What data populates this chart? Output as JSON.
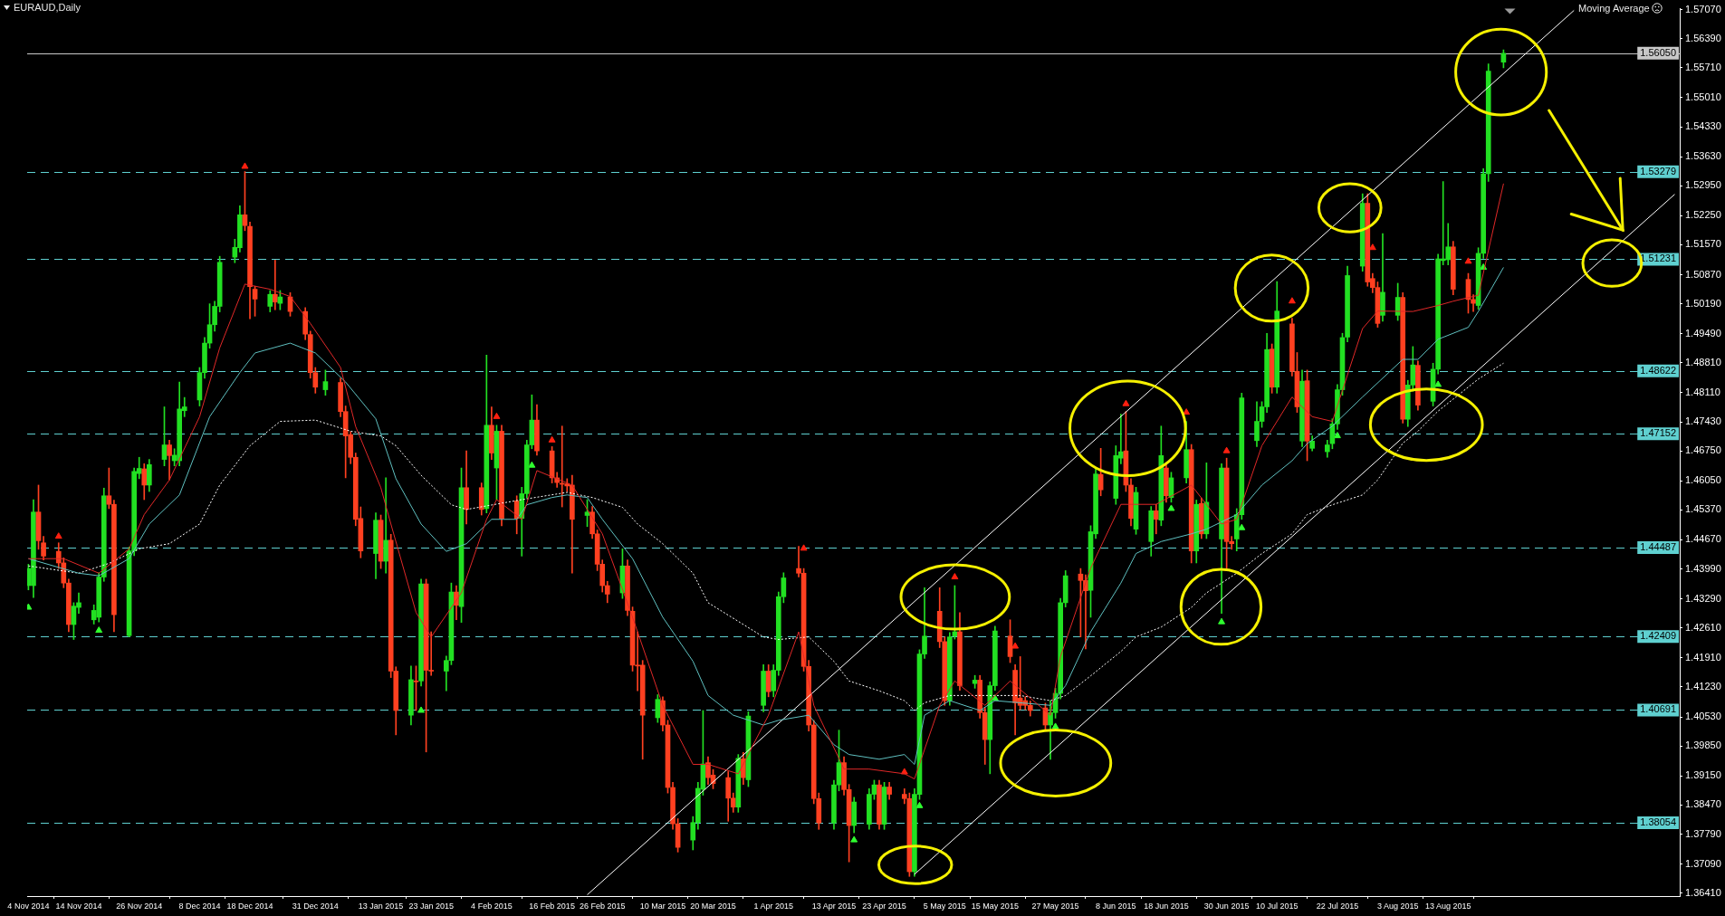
{
  "chart_data": {
    "type": "candlestick",
    "title": "EURAUD,Daily",
    "annotations": [
      "Moving Average"
    ],
    "x": [
      "2014-11-04",
      "2014-11-05",
      "2014-11-06",
      "2014-11-07",
      "2014-11-10",
      "2014-11-11",
      "2014-11-12",
      "2014-11-13",
      "2014-11-14",
      "2014-11-17",
      "2014-11-18",
      "2014-11-19",
      "2014-11-20",
      "2014-11-21",
      "2014-11-24",
      "2014-11-25",
      "2014-11-26",
      "2014-11-27",
      "2014-11-28",
      "2014-12-01",
      "2014-12-02",
      "2014-12-03",
      "2014-12-04",
      "2014-12-05",
      "2014-12-08",
      "2014-12-09",
      "2014-12-10",
      "2014-12-11",
      "2014-12-12",
      "2014-12-15",
      "2014-12-16",
      "2014-12-17",
      "2014-12-18",
      "2014-12-19",
      "2014-12-22",
      "2014-12-23",
      "2014-12-24",
      "2014-12-26",
      "2014-12-29",
      "2014-12-30",
      "2014-12-31",
      "2015-01-02",
      "2015-01-05",
      "2015-01-06",
      "2015-01-07",
      "2015-01-08",
      "2015-01-09",
      "2015-01-12",
      "2015-01-13",
      "2015-01-14",
      "2015-01-15",
      "2015-01-16",
      "2015-01-19",
      "2015-01-20",
      "2015-01-21",
      "2015-01-22",
      "2015-01-23",
      "2015-01-26",
      "2015-01-27",
      "2015-01-28",
      "2015-01-29",
      "2015-01-30",
      "2015-02-02",
      "2015-02-03",
      "2015-02-04",
      "2015-02-05",
      "2015-02-06",
      "2015-02-09",
      "2015-02-10",
      "2015-02-11",
      "2015-02-12",
      "2015-02-13",
      "2015-02-16",
      "2015-02-17",
      "2015-02-18",
      "2015-02-19",
      "2015-02-20",
      "2015-02-23",
      "2015-02-24",
      "2015-02-25",
      "2015-02-26",
      "2015-02-27",
      "2015-03-02",
      "2015-03-03",
      "2015-03-04",
      "2015-03-05",
      "2015-03-06",
      "2015-03-09",
      "2015-03-10",
      "2015-03-11",
      "2015-03-12",
      "2015-03-13",
      "2015-03-16",
      "2015-03-17",
      "2015-03-18",
      "2015-03-19",
      "2015-03-20",
      "2015-03-23",
      "2015-03-24",
      "2015-03-25",
      "2015-03-26",
      "2015-03-27",
      "2015-03-30",
      "2015-03-31",
      "2015-04-01",
      "2015-04-02",
      "2015-04-03",
      "2015-04-06",
      "2015-04-07",
      "2015-04-08",
      "2015-04-09",
      "2015-04-10",
      "2015-04-13",
      "2015-04-14",
      "2015-04-15",
      "2015-04-16",
      "2015-04-17",
      "2015-04-20",
      "2015-04-21",
      "2015-04-22",
      "2015-04-23",
      "2015-04-24",
      "2015-04-27",
      "2015-04-28",
      "2015-04-29",
      "2015-04-30",
      "2015-05-01",
      "2015-05-04",
      "2015-05-05",
      "2015-05-06",
      "2015-05-07",
      "2015-05-08",
      "2015-05-11",
      "2015-05-12",
      "2015-05-13",
      "2015-05-14",
      "2015-05-15",
      "2015-05-18",
      "2015-05-19",
      "2015-05-20",
      "2015-05-21",
      "2015-05-22",
      "2015-05-25",
      "2015-05-26",
      "2015-05-27",
      "2015-05-28",
      "2015-05-29",
      "2015-06-01",
      "2015-06-02",
      "2015-06-03",
      "2015-06-04",
      "2015-06-05",
      "2015-06-08",
      "2015-06-09",
      "2015-06-10",
      "2015-06-11",
      "2015-06-12",
      "2015-06-15",
      "2015-06-16",
      "2015-06-17",
      "2015-06-18",
      "2015-06-19",
      "2015-06-22",
      "2015-06-23",
      "2015-06-24",
      "2015-06-25",
      "2015-06-26",
      "2015-06-29",
      "2015-06-30",
      "2015-07-01",
      "2015-07-02",
      "2015-07-03",
      "2015-07-06",
      "2015-07-07",
      "2015-07-08",
      "2015-07-09",
      "2015-07-10",
      "2015-07-13",
      "2015-07-14",
      "2015-07-15",
      "2015-07-16",
      "2015-07-17",
      "2015-07-20",
      "2015-07-21",
      "2015-07-22",
      "2015-07-23",
      "2015-07-24",
      "2015-07-27",
      "2015-07-28",
      "2015-07-29",
      "2015-07-30",
      "2015-07-31",
      "2015-08-03",
      "2015-08-04",
      "2015-08-05",
      "2015-08-06",
      "2015-08-07",
      "2015-08-10",
      "2015-08-11",
      "2015-08-12",
      "2015-08-13",
      "2015-08-14",
      "2015-08-17",
      "2015-08-18",
      "2015-08-19",
      "2015-08-20",
      "2015-08-21",
      "2015-08-24"
    ],
    "ohlc": [
      [
        1.436,
        1.441,
        1.435,
        1.44
      ],
      [
        1.436,
        1.4561,
        1.4332,
        1.4532
      ],
      [
        1.4532,
        1.4595,
        1.4445,
        1.4465
      ],
      [
        1.446,
        1.4475,
        1.442,
        1.4429
      ],
      [
        1.444,
        1.446,
        1.44,
        1.4413
      ],
      [
        1.4413,
        1.4425,
        1.4355,
        1.4366
      ],
      [
        1.4366,
        1.4375,
        1.4252,
        1.4269
      ],
      [
        1.4269,
        1.432,
        1.4234,
        1.4312
      ],
      [
        1.4309,
        1.4343,
        1.4295,
        1.432
      ],
      [
        1.428,
        1.4315,
        1.427,
        1.4302
      ],
      [
        1.4286,
        1.439,
        1.4275,
        1.438
      ],
      [
        1.438,
        1.4588,
        1.437,
        1.457
      ],
      [
        1.457,
        1.4635,
        1.454,
        1.455
      ],
      [
        1.455,
        1.456,
        1.4252,
        1.4292
      ],
      [
        1.4243,
        1.445,
        1.424,
        1.4441
      ],
      [
        1.4441,
        1.4635,
        1.443,
        1.4627
      ],
      [
        1.4622,
        1.466,
        1.461,
        1.4634
      ],
      [
        1.4633,
        1.4645,
        1.4561,
        1.4595
      ],
      [
        1.4595,
        1.4655,
        1.458,
        1.4643
      ],
      [
        1.4655,
        1.4778,
        1.464,
        1.4689
      ],
      [
        1.4689,
        1.47,
        1.4607,
        1.4664
      ],
      [
        1.4652,
        1.468,
        1.464,
        1.4665
      ],
      [
        1.4652,
        1.4836,
        1.464,
        1.4773
      ],
      [
        1.4769,
        1.48,
        1.4755,
        1.4778
      ],
      [
        1.4794,
        1.487,
        1.478,
        1.4858
      ],
      [
        1.4858,
        1.494,
        1.4845,
        1.4927
      ],
      [
        1.4927,
        1.5019,
        1.4915,
        1.497
      ],
      [
        1.497,
        1.5025,
        1.4955,
        1.5013
      ],
      [
        1.5013,
        1.513,
        1.5,
        1.5116
      ],
      [
        1.5128,
        1.517,
        1.5115,
        1.5151
      ],
      [
        1.515,
        1.5248,
        1.514,
        1.5227
      ],
      [
        1.5227,
        1.5328,
        1.519,
        1.5202
      ],
      [
        1.52,
        1.521,
        1.4984,
        1.5059
      ],
      [
        1.5053,
        1.506,
        1.499,
        1.503
      ],
      [
        1.5013,
        1.505,
        1.5,
        1.5041
      ],
      [
        1.5041,
        1.5121,
        1.5005,
        1.5023
      ],
      [
        1.502,
        1.505,
        1.5005,
        1.5035
      ],
      [
        1.5035,
        1.5045,
        1.499,
        1.5001
      ],
      [
        1.5001,
        1.501,
        1.4935,
        1.4948
      ],
      [
        1.4947,
        1.4955,
        1.4845,
        1.4858
      ],
      [
        1.4858,
        1.487,
        1.481,
        1.4824
      ],
      [
        1.4818,
        1.4864,
        1.4805,
        1.4837
      ],
      [
        1.4835,
        1.4845,
        1.4755,
        1.4767
      ],
      [
        1.4767,
        1.478,
        1.4612,
        1.471
      ],
      [
        1.4713,
        1.472,
        1.4645,
        1.466
      ],
      [
        1.466,
        1.467,
        1.45,
        1.4515
      ],
      [
        1.4517,
        1.4544,
        1.4425,
        1.4441
      ],
      [
        1.4435,
        1.453,
        1.4376,
        1.4513
      ],
      [
        1.4513,
        1.4525,
        1.44,
        1.4417
      ],
      [
        1.4417,
        1.4612,
        1.4389,
        1.4466
      ],
      [
        1.4466,
        1.448,
        1.4145,
        1.416
      ],
      [
        1.416,
        1.417,
        1.4011,
        1.4068
      ],
      [
        1.4057,
        1.4172,
        1.4034,
        1.414
      ],
      [
        1.4137,
        1.4172,
        1.4068,
        1.4135
      ],
      [
        1.4137,
        1.4375,
        1.4125,
        1.4364
      ],
      [
        1.4364,
        1.4375,
        1.3971,
        1.4162
      ],
      [
        1.4162,
        1.4252,
        1.415,
        1.416
      ],
      [
        1.416,
        1.4195,
        1.4114,
        1.4185
      ],
      [
        1.4185,
        1.4366,
        1.4175,
        1.4345
      ],
      [
        1.4345,
        1.436,
        1.428,
        1.4314
      ],
      [
        1.4311,
        1.4635,
        1.4274,
        1.4589
      ],
      [
        1.4589,
        1.4675,
        1.4504,
        1.4538
      ],
      [
        1.4589,
        1.46,
        1.4525,
        1.4538
      ],
      [
        1.454,
        1.4899,
        1.453,
        1.4735
      ],
      [
        1.4735,
        1.4778,
        1.4655,
        1.467
      ],
      [
        1.4635,
        1.4735,
        1.4561,
        1.4721
      ],
      [
        1.4721,
        1.4735,
        1.45,
        1.4517
      ],
      [
        1.4558,
        1.457,
        1.4481,
        1.4517
      ],
      [
        1.4517,
        1.459,
        1.4429,
        1.4575
      ],
      [
        1.4575,
        1.47,
        1.4565,
        1.4689
      ],
      [
        1.4689,
        1.4806,
        1.468,
        1.4747
      ],
      [
        1.4747,
        1.4783,
        1.4665,
        1.4675
      ],
      [
        1.4675,
        1.4685,
        1.46,
        1.4612
      ],
      [
        1.4612,
        1.4625,
        1.459,
        1.4601
      ],
      [
        1.4598,
        1.4733,
        1.4544,
        1.4597
      ],
      [
        1.4598,
        1.461,
        1.458,
        1.4593
      ],
      [
        1.4595,
        1.4618,
        1.4389,
        1.4515
      ],
      [
        1.4524,
        1.4561,
        1.4498,
        1.4532
      ],
      [
        1.4532,
        1.4545,
        1.447,
        1.4481
      ],
      [
        1.4481,
        1.449,
        1.4395,
        1.441
      ],
      [
        1.441,
        1.442,
        1.4345,
        1.436
      ],
      [
        1.436,
        1.437,
        1.432,
        1.434
      ],
      [
        1.4343,
        1.4446,
        1.433,
        1.4406
      ],
      [
        1.4406,
        1.442,
        1.429,
        1.4302
      ],
      [
        1.43,
        1.431,
        1.416,
        1.4174
      ],
      [
        1.4174,
        1.4252,
        1.4114,
        1.4172
      ],
      [
        1.4174,
        1.4185,
        1.3954,
        1.4057
      ],
      [
        1.4051,
        1.4105,
        1.404,
        1.4094
      ],
      [
        1.4091,
        1.41,
        1.402,
        1.4034
      ],
      [
        1.4034,
        1.4045,
        1.3875,
        1.3888
      ],
      [
        1.3888,
        1.39,
        1.379,
        1.3803
      ],
      [
        1.3803,
        1.3815,
        1.3737,
        1.3748
      ],
      [
        1.3765,
        1.382,
        1.3742,
        1.3806
      ],
      [
        1.3806,
        1.39,
        1.379,
        1.3886
      ],
      [
        1.3884,
        1.4068,
        1.387,
        1.3943
      ],
      [
        1.3946,
        1.396,
        1.3895,
        1.3911
      ],
      [
        1.3917,
        1.393,
        1.3885,
        1.3897
      ],
      [
        1.3911,
        1.3925,
        1.3809,
        1.3863
      ],
      [
        1.3863,
        1.3875,
        1.383,
        1.3842
      ],
      [
        1.3842,
        1.3965,
        1.383,
        1.3956
      ],
      [
        1.3955,
        1.397,
        1.3895,
        1.3911
      ],
      [
        1.3906,
        1.4065,
        1.389,
        1.4055
      ],
      [
        1.408,
        1.4175,
        1.4065,
        1.416
      ],
      [
        1.416,
        1.4175,
        1.41,
        1.4112
      ],
      [
        1.4114,
        1.4175,
        1.41,
        1.4162
      ],
      [
        1.4162,
        1.4345,
        1.415,
        1.4334
      ],
      [
        1.4334,
        1.439,
        1.432,
        1.4378
      ],
      [
        1.44,
        1.4452,
        1.438,
        1.4389
      ],
      [
        1.4389,
        1.44,
        1.416,
        1.4171
      ],
      [
        1.4171,
        1.4185,
        1.402,
        1.4034
      ],
      [
        1.4034,
        1.4045,
        1.385,
        1.3862
      ],
      [
        1.3862,
        1.3875,
        1.379,
        1.3805
      ],
      [
        1.3805,
        1.3905,
        1.379,
        1.3894
      ],
      [
        1.3894,
        1.4022,
        1.388,
        1.3946
      ],
      [
        1.3946,
        1.396,
        1.387,
        1.3883
      ],
      [
        1.3883,
        1.3895,
        1.3714,
        1.3799
      ],
      [
        1.3799,
        1.3865,
        1.3782,
        1.3854
      ],
      [
        1.3802,
        1.3885,
        1.379,
        1.3872
      ],
      [
        1.3872,
        1.3905,
        1.386,
        1.3894
      ],
      [
        1.3894,
        1.3905,
        1.379,
        1.3802
      ],
      [
        1.3802,
        1.39,
        1.379,
        1.3889
      ],
      [
        1.3889,
        1.39,
        1.386,
        1.3872
      ],
      [
        1.3872,
        1.3885,
        1.385,
        1.3862
      ],
      [
        1.3862,
        1.3875,
        1.368,
        1.3691
      ],
      [
        1.3691,
        1.3885,
        1.368,
        1.3872
      ],
      [
        1.3872,
        1.421,
        1.386,
        1.42
      ],
      [
        1.42,
        1.4355,
        1.419,
        1.4242
      ],
      [
        1.43,
        1.4355,
        1.4215,
        1.4229
      ],
      [
        1.4229,
        1.424,
        1.408,
        1.4091
      ],
      [
        1.4091,
        1.425,
        1.408,
        1.424
      ],
      [
        1.4242,
        1.436,
        1.4235,
        1.4252
      ],
      [
        1.4252,
        1.4297,
        1.4115,
        1.4126
      ],
      [
        1.4131,
        1.415,
        1.412,
        1.4139
      ],
      [
        1.4139,
        1.415,
        1.405,
        1.4063
      ],
      [
        1.4063,
        1.4075,
        1.3942,
        1.4
      ],
      [
        1.4,
        1.4135,
        1.392,
        1.4126
      ],
      [
        1.4126,
        1.4265,
        1.4115,
        1.4254
      ],
      [
        1.4242,
        1.428,
        1.418,
        1.4194
      ],
      [
        1.4162,
        1.4175,
        1.4011,
        1.4086
      ],
      [
        1.4097,
        1.4194,
        1.407,
        1.408
      ],
      [
        1.4091,
        1.41,
        1.407,
        1.408
      ],
      [
        1.408,
        1.409,
        1.4055,
        1.4068
      ],
      [
        1.4074,
        1.4085,
        1.402,
        1.4034
      ],
      [
        1.4034,
        1.4091,
        1.3954,
        1.4063
      ],
      [
        1.4063,
        1.412,
        1.405,
        1.4108
      ],
      [
        1.4108,
        1.433,
        1.4095,
        1.432
      ],
      [
        1.432,
        1.4395,
        1.431,
        1.4383
      ],
      [
        1.4387,
        1.44,
        1.424,
        1.4372
      ],
      [
        1.4372,
        1.4385,
        1.4212,
        1.4348
      ],
      [
        1.4349,
        1.45,
        1.4286,
        1.4486
      ],
      [
        1.4481,
        1.4635,
        1.447,
        1.4621
      ],
      [
        1.462,
        1.4681,
        1.457,
        1.4584
      ],
      [
        1.4564,
        1.4687,
        1.455,
        1.4664
      ],
      [
        1.4658,
        1.4761,
        1.4645,
        1.4673
      ],
      [
        1.4675,
        1.4767,
        1.458,
        1.4595
      ],
      [
        1.4595,
        1.461,
        1.45,
        1.4517
      ],
      [
        1.4492,
        1.459,
        1.448,
        1.4578
      ],
      [
        1.4463,
        1.4545,
        1.4429,
        1.4535
      ],
      [
        1.4535,
        1.455,
        1.4481,
        1.4515
      ],
      [
        1.4513,
        1.4733,
        1.45,
        1.4664
      ],
      [
        1.4635,
        1.4645,
        1.4555,
        1.457
      ],
      [
        1.4566,
        1.4625,
        1.4555,
        1.4612
      ],
      [
        1.4612,
        1.4744,
        1.46,
        1.4678
      ],
      [
        1.4678,
        1.469,
        1.4413,
        1.4441
      ],
      [
        1.4441,
        1.456,
        1.4413,
        1.455
      ],
      [
        1.4552,
        1.4565,
        1.447,
        1.4481
      ],
      [
        1.4481,
        1.4647,
        1.447,
        1.4555
      ],
      [
        1.4469,
        1.4645,
        1.4295,
        1.4635
      ],
      [
        1.4635,
        1.4658,
        1.44,
        1.4463
      ],
      [
        1.4463,
        1.4475,
        1.4445,
        1.4458
      ],
      [
        1.4469,
        1.454,
        1.4441,
        1.4526
      ],
      [
        1.4526,
        1.481,
        1.4515,
        1.4799
      ],
      [
        1.4699,
        1.479,
        1.4685,
        1.4744
      ],
      [
        1.4744,
        1.479,
        1.473,
        1.4778
      ],
      [
        1.4778,
        1.495,
        1.4765,
        1.4912
      ],
      [
        1.4913,
        1.4925,
        1.481,
        1.4824
      ],
      [
        1.4824,
        1.5071,
        1.481,
        1.5002
      ],
      [
        1.4972,
        1.4985,
        1.485,
        1.4861
      ],
      [
        1.4861,
        1.4905,
        1.4765,
        1.4778
      ],
      [
        1.4698,
        1.4864,
        1.4685,
        1.4838
      ],
      [
        1.4839,
        1.4864,
        1.4652,
        1.4698
      ],
      [
        1.4681,
        1.471,
        1.4675,
        1.4698
      ],
      [
        1.4673,
        1.47,
        1.466,
        1.4689
      ],
      [
        1.4692,
        1.475,
        1.468,
        1.4738
      ],
      [
        1.4738,
        1.483,
        1.4725,
        1.4818
      ],
      [
        1.4818,
        1.495,
        1.4805,
        1.494
      ],
      [
        1.4941,
        1.5107,
        1.493,
        1.5085
      ],
      [
        1.5107,
        1.5276,
        1.5095,
        1.5254
      ],
      [
        1.5254,
        1.5276,
        1.506,
        1.507
      ],
      [
        1.5078,
        1.509,
        1.5045,
        1.5057
      ],
      [
        1.5057,
        1.507,
        1.4964,
        1.4973
      ],
      [
        1.4992,
        1.5183,
        1.4978,
        1.5046
      ],
      [
        1.4992,
        1.5067,
        1.498,
        1.5034
      ],
      [
        1.5034,
        1.5045,
        1.474,
        1.4749
      ],
      [
        1.4749,
        1.484,
        1.4732,
        1.4829
      ],
      [
        1.4829,
        1.4919,
        1.4815,
        1.4876
      ],
      [
        1.4875,
        1.4885,
        1.477,
        1.4782
      ],
      [
        1.4791,
        1.488,
        1.478,
        1.4866
      ],
      [
        1.4866,
        1.5135,
        1.4855,
        1.5124
      ],
      [
        1.512,
        1.5305,
        1.511,
        1.5124
      ],
      [
        1.5122,
        1.5207,
        1.511,
        1.5152
      ],
      [
        1.5152,
        1.5165,
        1.504,
        1.5053
      ],
      [
        1.5076,
        1.509,
        1.4997,
        1.5029
      ],
      [
        1.5029,
        1.504,
        1.5001,
        1.502
      ],
      [
        1.5015,
        1.515,
        1.5006,
        1.5137
      ],
      [
        1.5137,
        1.5335,
        1.5125,
        1.5323
      ],
      [
        1.5323,
        1.558,
        1.5305,
        1.5563
      ],
      [
        1.5584,
        1.5613,
        1.5571,
        1.5605
      ]
    ],
    "colors": [
      "#22e022",
      "#22e022",
      "#ff4020",
      "#ff4020",
      "#ff4020",
      "#ff4020",
      "#ff4020",
      "#22e022",
      "#22e022",
      "#22e022",
      "#22e022",
      "#22e022",
      "#ff4020",
      "#ff4020",
      "#22e022",
      "#22e022",
      "#22e022",
      "#ff4020",
      "#22e022",
      "#22e022",
      "#ff4020",
      "#22e022",
      "#22e022",
      "#22e022",
      "#22e022",
      "#22e022",
      "#22e022",
      "#22e022",
      "#22e022",
      "#22e022",
      "#22e022",
      "#ff4020",
      "#ff4020",
      "#ff4020",
      "#22e022",
      "#ff4020",
      "#22e022",
      "#ff4020",
      "#ff4020",
      "#ff4020",
      "#ff4020",
      "#22e022",
      "#ff4020",
      "#ff4020",
      "#ff4020",
      "#ff4020",
      "#ff4020",
      "#22e022",
      "#ff4020",
      "#22e022",
      "#ff4020",
      "#ff4020",
      "#22e022",
      "#ff4020",
      "#22e022",
      "#ff4020",
      "#ff4020",
      "#22e022",
      "#22e022",
      "#ff4020",
      "#22e022",
      "#ff4020",
      "#ff4020",
      "#22e022",
      "#ff4020",
      "#22e022",
      "#ff4020",
      "#ff4020",
      "#22e022",
      "#22e022",
      "#22e022",
      "#ff4020",
      "#ff4020",
      "#ff4020",
      "#ff4020",
      "#ff4020",
      "#ff4020",
      "#22e022",
      "#ff4020",
      "#ff4020",
      "#ff4020",
      "#ff4020",
      "#22e022",
      "#ff4020",
      "#ff4020",
      "#ff4020",
      "#ff4020",
      "#22e022",
      "#ff4020",
      "#ff4020",
      "#ff4020",
      "#ff4020",
      "#22e022",
      "#22e022",
      "#22e022",
      "#ff4020",
      "#ff4020",
      "#ff4020",
      "#ff4020",
      "#22e022",
      "#ff4020",
      "#22e022",
      "#22e022",
      "#ff4020",
      "#22e022",
      "#22e022",
      "#22e022",
      "#ff4020",
      "#ff4020",
      "#ff4020",
      "#ff4020",
      "#ff4020",
      "#22e022",
      "#22e022",
      "#ff4020",
      "#ff4020",
      "#22e022",
      "#22e022",
      "#22e022",
      "#ff4020",
      "#22e022",
      "#ff4020",
      "#ff4020",
      "#ff4020",
      "#22e022",
      "#22e022",
      "#22e022",
      "#ff4020",
      "#ff4020",
      "#22e022",
      "#22e022",
      "#ff4020",
      "#22e022",
      "#ff4020",
      "#ff4020",
      "#22e022",
      "#22e022",
      "#ff4020",
      "#ff4020",
      "#ff4020",
      "#ff4020",
      "#ff4020",
      "#ff4020",
      "#22e022",
      "#22e022",
      "#22e022",
      "#22e022",
      "#ff4020",
      "#ff4020",
      "#22e022",
      "#22e022",
      "#ff4020",
      "#22e022",
      "#22e022",
      "#ff4020",
      "#ff4020",
      "#22e022",
      "#22e022",
      "#ff4020",
      "#22e022",
      "#ff4020",
      "#22e022",
      "#22e022",
      "#ff4020",
      "#22e022",
      "#ff4020",
      "#22e022",
      "#22e022",
      "#ff4020",
      "#ff4020",
      "#22e022",
      "#22e022",
      "#22e022",
      "#22e022",
      "#22e022",
      "#ff4020",
      "#22e022",
      "#ff4020",
      "#ff4020",
      "#22e022",
      "#ff4020",
      "#22e022",
      "#22e022",
      "#22e022",
      "#22e022",
      "#22e022",
      "#22e022",
      "#22e022",
      "#ff4020",
      "#ff4020",
      "#ff4020",
      "#22e022",
      "#22e022",
      "#ff4020",
      "#22e022",
      "#22e022",
      "#ff4020",
      "#22e022",
      "#22e022",
      "#22e022",
      "#22e022",
      "#ff4020",
      "#ff4020",
      "#ff4020",
      "#22e022",
      "#22e022",
      "#22e022",
      "#22e022"
    ],
    "series": [
      {
        "type": "line",
        "color": "#e02828",
        "x": [
          "2014-11-04",
          "2014-11-11",
          "2014-11-18",
          "2014-11-24",
          "2014-11-27",
          "2014-12-02",
          "2014-12-08",
          "2014-12-12",
          "2014-12-17",
          "2014-12-22",
          "2014-12-26",
          "2014-12-30",
          "2015-01-05",
          "2015-01-08",
          "2015-01-13",
          "2015-01-15",
          "2015-01-20",
          "2015-01-23",
          "2015-01-29",
          "2015-02-03",
          "2015-02-05",
          "2015-02-10",
          "2015-02-13",
          "2015-02-20",
          "2015-02-26",
          "2015-03-04",
          "2015-03-10",
          "2015-03-16",
          "2015-03-19",
          "2015-03-25",
          "2015-03-31",
          "2015-04-06",
          "2015-04-09",
          "2015-04-15",
          "2015-04-20",
          "2015-04-27",
          "2015-04-29",
          "2015-05-04",
          "2015-05-07",
          "2015-05-13",
          "2015-05-18",
          "2015-05-26",
          "2015-05-28",
          "2015-06-03",
          "2015-06-09",
          "2015-06-16",
          "2015-06-23",
          "2015-06-29",
          "2015-07-02",
          "2015-07-07",
          "2015-07-13",
          "2015-07-17",
          "2015-07-21",
          "2015-07-27",
          "2015-07-30",
          "2015-08-06",
          "2015-08-11",
          "2015-08-14",
          "2015-08-19",
          "2015-08-24"
        ],
        "values": [
          1.4423,
          1.4423,
          1.4389,
          1.4446,
          1.4526,
          1.4607,
          1.4755,
          1.4916,
          1.5065,
          1.5053,
          1.5036,
          1.4973,
          1.487,
          1.4732,
          1.4589,
          1.4504,
          1.4297,
          1.424,
          1.4343,
          1.4515,
          1.4561,
          1.4515,
          1.4629,
          1.4595,
          1.4481,
          1.4286,
          1.408,
          1.3942,
          1.3942,
          1.392,
          1.4057,
          1.4252,
          1.408,
          1.3931,
          1.3931,
          1.392,
          1.3908,
          1.408,
          1.4137,
          1.408,
          1.4137,
          1.4057,
          1.4194,
          1.4401,
          1.455,
          1.455,
          1.4595,
          1.4504,
          1.4515,
          1.4687,
          1.4801,
          1.4755,
          1.4744,
          1.4961,
          1.5002,
          1.5001,
          1.5015,
          1.5025,
          1.5039,
          1.53
        ]
      },
      {
        "type": "line",
        "color": "#5fc0c0",
        "x": [
          "2014-11-04",
          "2014-11-14",
          "2014-11-18",
          "2014-11-24",
          "2014-11-28",
          "2014-12-04",
          "2014-12-10",
          "2014-12-16",
          "2014-12-19",
          "2014-12-26",
          "2014-12-31",
          "2015-01-06",
          "2015-01-12",
          "2015-01-16",
          "2015-01-21",
          "2015-01-26",
          "2015-01-30",
          "2015-02-04",
          "2015-02-09",
          "2015-02-11",
          "2015-02-16",
          "2015-02-19",
          "2015-02-23",
          "2015-02-26",
          "2015-03-04",
          "2015-03-10",
          "2015-03-16",
          "2015-03-19",
          "2015-03-24",
          "2015-03-30",
          "2015-04-02",
          "2015-04-08",
          "2015-04-13",
          "2015-04-16",
          "2015-04-22",
          "2015-04-27",
          "2015-04-29",
          "2015-05-01",
          "2015-05-06",
          "2015-05-12",
          "2015-05-15",
          "2015-05-26",
          "2015-05-29",
          "2015-06-03",
          "2015-06-09",
          "2015-06-12",
          "2015-06-17",
          "2015-06-23",
          "2015-06-26",
          "2015-07-02",
          "2015-07-07",
          "2015-07-13",
          "2015-07-16",
          "2015-07-21",
          "2015-07-27",
          "2015-08-04",
          "2015-08-07",
          "2015-08-11",
          "2015-08-17",
          "2015-08-19",
          "2015-08-24"
        ],
        "values": [
          1.4423,
          1.4389,
          1.4383,
          1.4423,
          1.4504,
          1.4572,
          1.4755,
          1.4858,
          1.4904,
          1.4927,
          1.4904,
          1.4836,
          1.475,
          1.461,
          1.4504,
          1.444,
          1.4458,
          1.4515,
          1.4515,
          1.4549,
          1.4566,
          1.4572,
          1.4566,
          1.4515,
          1.4423,
          1.4286,
          1.4183,
          1.4103,
          1.4057,
          1.4034,
          1.4045,
          1.4057,
          1.3988,
          1.3965,
          1.3954,
          1.3965,
          1.3942,
          1.4057,
          1.4091,
          1.4068,
          1.4091,
          1.408,
          1.4126,
          1.4252,
          1.4366,
          1.4435,
          1.4463,
          1.4481,
          1.4492,
          1.4526,
          1.4595,
          1.4652,
          1.4692,
          1.4733,
          1.4801,
          1.4889,
          1.4889,
          1.4936,
          1.4964,
          1.5001,
          1.5104
        ]
      },
      {
        "type": "line",
        "color": "#ffffff",
        "line_style": "dotted",
        "x": [
          "2014-11-04",
          "2014-11-14",
          "2014-11-20",
          "2014-11-26",
          "2014-12-02",
          "2014-12-08",
          "2014-12-12",
          "2014-12-18",
          "2014-12-24",
          "2014-12-31",
          "2015-01-07",
          "2015-01-13",
          "2015-01-16",
          "2015-01-21",
          "2015-01-27",
          "2015-01-30",
          "2015-02-10",
          "2015-02-19",
          "2015-02-24",
          "2015-03-02",
          "2015-03-05",
          "2015-03-10",
          "2015-03-16",
          "2015-03-19",
          "2015-03-30",
          "2015-04-02",
          "2015-04-08",
          "2015-04-13",
          "2015-04-16",
          "2015-04-22",
          "2015-04-27",
          "2015-04-29",
          "2015-05-01",
          "2015-05-06",
          "2015-05-12",
          "2015-05-15",
          "2015-05-20",
          "2015-05-26",
          "2015-05-29",
          "2015-06-03",
          "2015-06-09",
          "2015-06-12",
          "2015-06-17",
          "2015-06-23",
          "2015-06-26",
          "2015-07-02",
          "2015-07-07",
          "2015-07-13",
          "2015-07-16",
          "2015-07-21",
          "2015-07-27",
          "2015-07-30",
          "2015-08-04",
          "2015-08-07",
          "2015-08-11",
          "2015-08-14",
          "2015-08-19",
          "2015-08-24"
        ],
        "values": [
          1.4406,
          1.4389,
          1.4412,
          1.4446,
          1.4458,
          1.4504,
          1.4595,
          1.4687,
          1.4744,
          1.4747,
          1.4721,
          1.471,
          1.4687,
          1.4618,
          1.4549,
          1.4538,
          1.4561,
          1.4578,
          1.4566,
          1.4543,
          1.4504,
          1.4458,
          1.4389,
          1.432,
          1.424,
          1.4234,
          1.424,
          1.4183,
          1.4137,
          1.4114,
          1.4091,
          1.4068,
          1.4086,
          1.4103,
          1.4103,
          1.4103,
          1.4103,
          1.4091,
          1.4103,
          1.4149,
          1.4206,
          1.424,
          1.4263,
          1.4309,
          1.4343,
          1.4389,
          1.4435,
          1.4481,
          1.4526,
          1.4549,
          1.4572,
          1.4607,
          1.4693,
          1.4721,
          1.4768,
          1.4796,
          1.4843,
          1.488
        ]
      },
      {
        "type": "line",
        "color": "#ffffff",
        "x": [
          "2015-02-23",
          "2015-09-07"
        ],
        "values": [
          1.3637,
          1.5705
        ]
      },
      {
        "type": "line",
        "color": "#ffffff",
        "x": [
          "2015-04-29",
          "2015-09-27"
        ],
        "values": [
          1.3685,
          1.5275
        ]
      },
      {
        "type": "scatter",
        "marker": "triangle",
        "color": "#ff2010",
        "x": [
          "2014-11-10",
          "2014-12-17",
          "2015-02-05",
          "2015-02-16",
          "2015-04-07",
          "2015-04-27",
          "2015-05-07",
          "2015-05-19",
          "2015-06-10",
          "2015-06-22",
          "2015-06-30",
          "2015-07-13",
          "2015-07-29",
          "2015-08-17"
        ],
        "values": [
          1.4475,
          1.534,
          1.4755,
          1.47,
          1.4447,
          1.3924,
          1.438,
          1.4218,
          1.4785,
          1.4765,
          1.4675,
          1.5025,
          1.515,
          1.5118
        ]
      },
      {
        "type": "scatter",
        "marker": "triangle",
        "color": "#30ff30",
        "x": [
          "2014-11-04",
          "2014-11-18",
          "2015-01-21",
          "2015-02-12",
          "2015-04-17",
          "2015-04-30",
          "2015-05-15",
          "2015-05-27",
          "2015-06-19",
          "2015-06-29",
          "2015-07-03",
          "2015-07-22",
          "2015-08-11",
          "2015-08-20"
        ],
        "values": [
          1.4309,
          1.4255,
          1.4068,
          1.4641,
          1.3765,
          1.3845,
          1.4096,
          1.403,
          1.454,
          1.4275,
          1.4495,
          1.471,
          1.483,
          1.5104
        ]
      }
    ],
    "xlim": [
      "2014-11-03T18:00",
      "2015-09-28"
    ],
    "xticks": [
      {
        "value": "2014-11-04",
        "label": "4 Nov 2014"
      },
      {
        "value": "2014-11-14",
        "label": "14 Nov 2014"
      },
      {
        "value": "2014-11-26",
        "label": "26 Nov 2014"
      },
      {
        "value": "2014-12-08",
        "label": "8 Dec 2014"
      },
      {
        "value": "2014-12-18",
        "label": "18 Dec 2014"
      },
      {
        "value": "2014-12-31",
        "label": "31 Dec 2014"
      },
      {
        "value": "2015-01-13",
        "label": "13 Jan 2015"
      },
      {
        "value": "2015-01-23",
        "label": "23 Jan 2015"
      },
      {
        "value": "2015-02-04",
        "label": "4 Feb 2015"
      },
      {
        "value": "2015-02-16",
        "label": "16 Feb 2015"
      },
      {
        "value": "2015-02-26",
        "label": "26 Feb 2015"
      },
      {
        "value": "2015-03-10",
        "label": "10 Mar 2015"
      },
      {
        "value": "2015-03-20",
        "label": "20 Mar 2015"
      },
      {
        "value": "2015-04-01",
        "label": "1 Apr 2015"
      },
      {
        "value": "2015-04-13",
        "label": "13 Apr 2015"
      },
      {
        "value": "2015-04-23",
        "label": "23 Apr 2015"
      },
      {
        "value": "2015-05-05",
        "label": "5 May 2015"
      },
      {
        "value": "2015-05-15",
        "label": "15 May 2015"
      },
      {
        "value": "2015-05-27",
        "label": "27 May 2015"
      },
      {
        "value": "2015-06-08",
        "label": "8 Jun 2015"
      },
      {
        "value": "2015-06-18",
        "label": "18 Jun 2015"
      },
      {
        "value": "2015-06-30",
        "label": "30 Jun 2015"
      },
      {
        "value": "2015-07-10",
        "label": "10 Jul 2015"
      },
      {
        "value": "2015-07-22",
        "label": "22 Jul 2015"
      },
      {
        "value": "2015-08-03",
        "label": "3 Aug 2015"
      },
      {
        "value": "2015-08-13",
        "label": "13 Aug 2015"
      }
    ],
    "ylim": [
      1.3634,
      1.5709
    ],
    "yticks": [
      {
        "value": 1.3641,
        "label": "1.36410"
      },
      {
        "value": 1.3709,
        "label": "1.37090"
      },
      {
        "value": 1.3779,
        "label": "1.37790"
      },
      {
        "value": 1.3847,
        "label": "1.38470"
      },
      {
        "value": 1.3915,
        "label": "1.39150"
      },
      {
        "value": 1.3985,
        "label": "1.39850"
      },
      {
        "value": 1.4053,
        "label": "1.40530"
      },
      {
        "value": 1.4123,
        "label": "1.41230"
      },
      {
        "value": 1.4191,
        "label": "1.41910"
      },
      {
        "value": 1.4261,
        "label": "1.42610"
      },
      {
        "value": 1.4329,
        "label": "1.43290"
      },
      {
        "value": 1.4399,
        "label": "1.43990"
      },
      {
        "value": 1.4467,
        "label": "1.44670"
      },
      {
        "value": 1.4537,
        "label": "1.45370"
      },
      {
        "value": 1.4605,
        "label": "1.46050"
      },
      {
        "value": 1.4675,
        "label": "1.46750"
      },
      {
        "value": 1.4743,
        "label": "1.47430"
      },
      {
        "value": 1.4811,
        "label": "1.48110"
      },
      {
        "value": 1.4881,
        "label": "1.48810"
      },
      {
        "value": 1.4949,
        "label": "1.49490"
      },
      {
        "value": 1.5019,
        "label": "1.50190"
      },
      {
        "value": 1.5087,
        "label": "1.50870"
      },
      {
        "value": 1.5157,
        "label": "1.51570"
      },
      {
        "value": 1.5225,
        "label": "1.52250"
      },
      {
        "value": 1.5295,
        "label": "1.52950"
      },
      {
        "value": 1.5363,
        "label": "1.53630"
      },
      {
        "value": 1.5433,
        "label": "1.54330"
      },
      {
        "value": 1.5501,
        "label": "1.55010"
      },
      {
        "value": 1.5571,
        "label": "1.55710"
      },
      {
        "value": 1.5639,
        "label": "1.56390"
      },
      {
        "value": 1.5707,
        "label": "1.57070"
      }
    ],
    "ref_lines": [
      {
        "axis": "y",
        "value": 1.5605,
        "label": "1.56050",
        "color": "#c8c8c8",
        "line_style": "solid"
      },
      {
        "axis": "y",
        "value": 1.53279,
        "label": "1.53279",
        "color": "#5fd0d0",
        "line_style": "dashed"
      },
      {
        "axis": "y",
        "value": 1.51231,
        "label": "1.51231",
        "color": "#5fd0d0",
        "line_style": "dashed"
      },
      {
        "axis": "y",
        "value": 1.48622,
        "label": "1.48622",
        "color": "#5fd0d0",
        "line_style": "dashed"
      },
      {
        "axis": "y",
        "value": 1.47152,
        "label": "1.47152",
        "color": "#5fd0d0",
        "line_style": "dashed"
      },
      {
        "axis": "y",
        "value": 1.44487,
        "label": "1.44487",
        "color": "#5fd0d0",
        "line_style": "dashed"
      },
      {
        "axis": "y",
        "value": 1.42409,
        "label": "1.42409",
        "color": "#5fd0d0",
        "line_style": "dashed"
      },
      {
        "axis": "y",
        "value": 1.40691,
        "label": "1.40691",
        "color": "#5fd0d0",
        "line_style": "dashed"
      },
      {
        "axis": "y",
        "value": 1.38054,
        "label": "1.38054",
        "color": "#5fd0d0",
        "line_style": "dashed"
      }
    ]
  }
}
